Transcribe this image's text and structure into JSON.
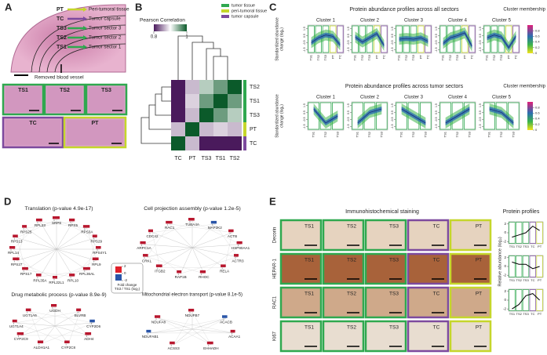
{
  "panels": {
    "a": {
      "label": "A",
      "sectors": [
        "PT",
        "TC",
        "TS3",
        "TS2",
        "TS1"
      ],
      "sector_names": [
        "Peri-tumoral tissue",
        "Tumor capsule",
        "Tumor sector 3",
        "Tumor sector 2",
        "Tumor sector 1"
      ],
      "note": "Removed blood vessel",
      "thumbnails": [
        "TS1",
        "TS2",
        "TS3",
        "TC",
        "PT"
      ]
    },
    "b": {
      "label": "B",
      "colorbar_title": "Pearson Correlation",
      "colorbar_ticks": [
        0.8,
        1
      ],
      "legend": [
        "tumor tissue",
        "peri-tumoral tissue",
        "tumor capsule"
      ],
      "rows": [
        "TS2",
        "TS1",
        "TS3",
        "PT",
        "TC"
      ],
      "cols": [
        "TC",
        "PT",
        "TS3",
        "TS1",
        "TS2"
      ],
      "matrix": [
        [
          0.8,
          0.87,
          0.93,
          0.96,
          1
        ],
        [
          0.8,
          0.88,
          0.96,
          1,
          0.96
        ],
        [
          0.8,
          0.87,
          1,
          0.96,
          0.93
        ],
        [
          0.87,
          1,
          0.87,
          0.88,
          0.87
        ],
        [
          1,
          0.87,
          0.8,
          0.8,
          0.8
        ]
      ]
    },
    "c": {
      "label": "C",
      "membership_title": "Cluster membership",
      "membership_ticks": [
        0,
        0.2,
        0.4,
        0.6,
        0.8
      ],
      "ylim": [
        -2,
        2
      ],
      "yticks": [
        -1.5,
        -0.5,
        0.5,
        1.5
      ],
      "y_label": [
        "Standardized abundance",
        "change (log₂)"
      ],
      "x_labels": [
        "TS1",
        "TS2",
        "TS3",
        "PT",
        "TC"
      ],
      "rows": [
        {
          "title": "Protein abundance profiles across all sectors",
          "clusters": [
            {
              "name": "Cluster 1",
              "profile": [
                -0.5,
                0.2,
                0.6,
                0.4,
                -0.8
              ]
            },
            {
              "name": "Cluster 2",
              "profile": [
                0.3,
                -0.4,
                0.2,
                0.8,
                -0.9
              ]
            },
            {
              "name": "Cluster 3",
              "profile": [
                0,
                0.1,
                0,
                0.2,
                -0.3
              ]
            },
            {
              "name": "Cluster 4",
              "profile": [
                -0.6,
                0.2,
                0.5,
                0.9,
                -1
              ]
            },
            {
              "name": "Cluster 5",
              "profile": [
                0.2,
                0.6,
                0.3,
                -1.2,
                0.4
              ]
            }
          ]
        },
        {
          "title": "Protein abundance profiles across tumor sectors",
          "clusters": [
            {
              "name": "Cluster 1",
              "profile": [
                1,
                -1,
                0
              ]
            },
            {
              "name": "Cluster 2",
              "profile": [
                -1,
                0.5,
                1
              ]
            },
            {
              "name": "Cluster 3",
              "profile": [
                1,
                0,
                -1
              ]
            },
            {
              "name": "Cluster 4",
              "profile": [
                -1,
                0,
                1
              ]
            },
            {
              "name": "Cluster 5",
              "profile": [
                1,
                0.5,
                -1
              ]
            }
          ]
        }
      ]
    },
    "d": {
      "label": "D",
      "legend_title": [
        "Fold change",
        "TS3 / TS1 (log₂)"
      ],
      "legend_ticks": [
        2,
        0,
        -2
      ],
      "networks": [
        {
          "title": "Translation (p-value 4.9e-17)",
          "genes": [
            {
              "name": "SRP9",
              "fc": 1.5
            },
            {
              "name": "RPS5",
              "fc": 1.2
            },
            {
              "name": "RPS3A",
              "fc": 1.4
            },
            {
              "name": "RPS29",
              "fc": 1
            },
            {
              "name": "RPS4Y1",
              "fc": 1.1
            },
            {
              "name": "RPL9",
              "fc": 1.3
            },
            {
              "name": "RPL36AL",
              "fc": 1.5
            },
            {
              "name": "RPL10",
              "fc": 1.2
            },
            {
              "name": "RPL22L1",
              "fc": 1
            },
            {
              "name": "RPL35A",
              "fc": 1.1
            },
            {
              "name": "RPS17",
              "fc": 1.3
            },
            {
              "name": "RPS27",
              "fc": 1.4
            },
            {
              "name": "RPL14",
              "fc": 1.2
            },
            {
              "name": "RPS13",
              "fc": 1.1
            },
            {
              "name": "RPS25",
              "fc": 1
            },
            {
              "name": "RPL23",
              "fc": 1.3
            }
          ]
        },
        {
          "title": "Cell projection assembly (p-value 1.2e-5)",
          "genes": [
            {
              "name": "TUBA4A",
              "fc": 1.3
            },
            {
              "name": "MAP2K2",
              "fc": -1.2
            },
            {
              "name": "ACTB",
              "fc": 1.1
            },
            {
              "name": "HSP90AA1",
              "fc": 1.2
            },
            {
              "name": "ACTR3",
              "fc": 1
            },
            {
              "name": "RELA",
              "fc": 1.1
            },
            {
              "name": "RHOC",
              "fc": 1.2
            },
            {
              "name": "RAP1B",
              "fc": 1
            },
            {
              "name": "ITGB2",
              "fc": 1.3
            },
            {
              "name": "CRKL",
              "fc": 1.1
            },
            {
              "name": "ARPC1A",
              "fc": 1.2
            },
            {
              "name": "CDC42",
              "fc": 1
            },
            {
              "name": "RAC1",
              "fc": 1.4
            }
          ]
        },
        {
          "title": "Drug metabolic process (p-value 8.9e-9)",
          "genes": [
            {
              "name": "UGDH",
              "fc": 1.2
            },
            {
              "name": "BLVRB",
              "fc": 1
            },
            {
              "name": "CYP2D6",
              "fc": -1.1
            },
            {
              "name": "ADH4",
              "fc": 1.3
            },
            {
              "name": "CYP2C8",
              "fc": 1.1
            },
            {
              "name": "ALDH1A1",
              "fc": 1.2
            },
            {
              "name": "CYP2C9",
              "fc": 1.4
            },
            {
              "name": "UGT1A4",
              "fc": 1
            },
            {
              "name": "UGT1A6",
              "fc": 1.1
            }
          ]
        },
        {
          "title": "Mitochondrial electron transport (p-value 8.1e-5)",
          "genes": [
            {
              "name": "NDUFB7",
              "fc": 1.2
            },
            {
              "name": "ACACB",
              "fc": -1.1
            },
            {
              "name": "ACAA1",
              "fc": 1
            },
            {
              "name": "EHHADH",
              "fc": 1.3
            },
            {
              "name": "ACSS3",
              "fc": 1.1
            },
            {
              "name": "NDUFAB1",
              "fc": -1
            },
            {
              "name": "NDUFA8",
              "fc": 1.2
            }
          ]
        }
      ]
    },
    "e": {
      "label": "E",
      "staining_title": "Immunohistochemical staining",
      "profiles_title": "Protein profiles",
      "y_label": "Relative abundance (log₂)",
      "sectors": [
        "TS1",
        "TS2",
        "TS3",
        "TC",
        "PT"
      ],
      "ylim": [
        -2.5,
        2.5
      ],
      "yticks": [
        -2,
        0,
        2
      ],
      "markers": [
        {
          "name": "Decorin",
          "profile": [
            -1,
            -0.5,
            0,
            1.5,
            0.5
          ]
        },
        {
          "name": "HEPAR-1",
          "profile": [
            1,
            0.5,
            0.5,
            -0.5,
            0
          ]
        },
        {
          "name": "RAC1",
          "profile": [
            -2,
            -1,
            1,
            1.5,
            0
          ]
        },
        {
          "name": "Ki67"
        }
      ]
    }
  }
}
